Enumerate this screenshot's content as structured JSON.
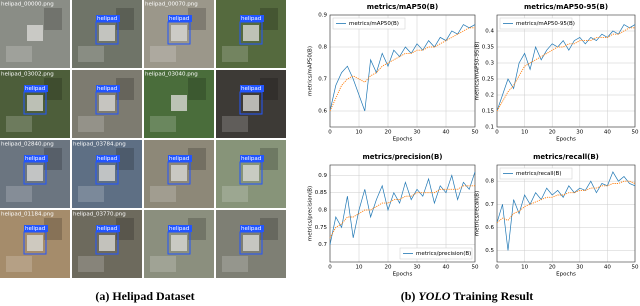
{
  "dataset": {
    "tiles": [
      {
        "file": "helipad_00000.png"
      },
      {
        "label": "helipad"
      },
      {
        "file": "helipad_00070.png",
        "label": "helipad"
      },
      {
        "label": "helipad"
      },
      {
        "file": "helipad_03002.png",
        "label": "helipad"
      },
      {
        "label": "helipad"
      },
      {
        "file": "helipad_03040.png"
      },
      {
        "label": "helipad"
      },
      {
        "file": "helipad_02840.png",
        "label": "helipad"
      },
      {
        "file": "helipad_03784.png",
        "label": "helipad"
      },
      {
        "label": "helipad"
      },
      {
        "label": "helipad"
      },
      {
        "file": "helipad_01184.png",
        "label": "helipad"
      },
      {
        "file": "helipad_03770.png",
        "label": "helipad"
      },
      {
        "label": "helipad"
      },
      {
        "label": "helipad"
      }
    ]
  },
  "caption_a": "(a) Helipad Dataset",
  "caption_b": {
    "label": "(b)",
    "italic": "YOLO",
    "rest": "Training Result"
  },
  "chart_data": [
    {
      "type": "line",
      "title": "metrics/mAP50(B)",
      "xlabel": "Epochs",
      "ylabel": "metrics/mAP50(B)",
      "legend": "upper left",
      "grid": true,
      "x": [
        0,
        2,
        4,
        6,
        8,
        10,
        12,
        14,
        16,
        18,
        20,
        22,
        24,
        26,
        28,
        30,
        32,
        34,
        36,
        38,
        40,
        42,
        44,
        46,
        48,
        50
      ],
      "xlim": [
        0,
        50
      ],
      "xticks": [
        0,
        10,
        20,
        30,
        40,
        50
      ],
      "ylim": [
        0.55,
        0.9
      ],
      "yticks": [
        0.6,
        0.7,
        0.8,
        0.9
      ],
      "series": [
        {
          "name": "metrics/mAP50(B)",
          "color": "#1f77b4",
          "style": "solid",
          "values": [
            0.6,
            0.68,
            0.72,
            0.74,
            0.7,
            0.65,
            0.6,
            0.76,
            0.72,
            0.78,
            0.74,
            0.79,
            0.77,
            0.8,
            0.78,
            0.81,
            0.79,
            0.82,
            0.8,
            0.83,
            0.82,
            0.85,
            0.84,
            0.87,
            0.86,
            0.87
          ]
        },
        {
          "color": "#ff7f0e",
          "style": "dotted",
          "values": [
            0.6,
            0.64,
            0.68,
            0.7,
            0.71,
            0.7,
            0.69,
            0.71,
            0.72,
            0.74,
            0.75,
            0.76,
            0.77,
            0.78,
            0.78,
            0.79,
            0.79,
            0.8,
            0.8,
            0.81,
            0.82,
            0.83,
            0.84,
            0.85,
            0.86,
            0.86
          ]
        }
      ]
    },
    {
      "type": "line",
      "title": "metrics/mAP50-95(B)",
      "xlabel": "Epochs",
      "ylabel": "metrics/mAP50-95(B)",
      "legend": "upper left",
      "grid": true,
      "x": [
        0,
        2,
        4,
        6,
        8,
        10,
        12,
        14,
        16,
        18,
        20,
        22,
        24,
        26,
        28,
        30,
        32,
        34,
        36,
        38,
        40,
        42,
        44,
        46,
        48,
        50
      ],
      "xlim": [
        0,
        50
      ],
      "xticks": [
        0,
        10,
        20,
        30,
        40,
        50
      ],
      "ylim": [
        0.1,
        0.45
      ],
      "yticks": [
        0.1,
        0.15,
        0.2,
        0.25,
        0.3,
        0.35,
        0.4
      ],
      "series": [
        {
          "name": "metrics/mAP50-95(B)",
          "color": "#1f77b4",
          "style": "solid",
          "values": [
            0.15,
            0.2,
            0.25,
            0.22,
            0.3,
            0.33,
            0.28,
            0.35,
            0.31,
            0.34,
            0.36,
            0.35,
            0.37,
            0.34,
            0.37,
            0.38,
            0.36,
            0.38,
            0.37,
            0.39,
            0.38,
            0.4,
            0.39,
            0.42,
            0.41,
            0.42
          ]
        },
        {
          "color": "#ff7f0e",
          "style": "dotted",
          "values": [
            0.15,
            0.18,
            0.21,
            0.23,
            0.26,
            0.29,
            0.3,
            0.31,
            0.32,
            0.33,
            0.34,
            0.35,
            0.35,
            0.36,
            0.36,
            0.37,
            0.37,
            0.37,
            0.38,
            0.38,
            0.38,
            0.39,
            0.39,
            0.4,
            0.41,
            0.41
          ]
        }
      ]
    },
    {
      "type": "line",
      "title": "metrics/precision(B)",
      "xlabel": "Epochs",
      "ylabel": "metrics/precision(B)",
      "legend": "lower right",
      "grid": true,
      "x": [
        0,
        2,
        4,
        6,
        8,
        10,
        12,
        14,
        16,
        18,
        20,
        22,
        24,
        26,
        28,
        30,
        32,
        34,
        36,
        38,
        40,
        42,
        44,
        46,
        48,
        50
      ],
      "xlim": [
        0,
        50
      ],
      "xticks": [
        0,
        10,
        20,
        30,
        40,
        50
      ],
      "ylim": [
        0.65,
        0.93
      ],
      "yticks": [
        0.7,
        0.75,
        0.8,
        0.85,
        0.9
      ],
      "series": [
        {
          "name": "metrics/precision(B)",
          "color": "#1f77b4",
          "style": "solid",
          "values": [
            0.7,
            0.78,
            0.75,
            0.84,
            0.72,
            0.8,
            0.86,
            0.78,
            0.83,
            0.87,
            0.8,
            0.85,
            0.82,
            0.88,
            0.83,
            0.86,
            0.84,
            0.89,
            0.82,
            0.87,
            0.85,
            0.9,
            0.83,
            0.88,
            0.86,
            0.91
          ]
        },
        {
          "color": "#ff7f0e",
          "style": "dotted",
          "values": [
            0.72,
            0.75,
            0.76,
            0.78,
            0.78,
            0.79,
            0.8,
            0.8,
            0.81,
            0.82,
            0.82,
            0.83,
            0.83,
            0.84,
            0.84,
            0.85,
            0.85,
            0.85,
            0.85,
            0.86,
            0.86,
            0.86,
            0.86,
            0.87,
            0.87,
            0.87
          ]
        }
      ]
    },
    {
      "type": "line",
      "title": "metrics/recall(B)",
      "xlabel": "Epochs",
      "ylabel": "metrics/recall(B)",
      "legend": "upper left",
      "grid": true,
      "x": [
        0,
        2,
        4,
        6,
        8,
        10,
        12,
        14,
        16,
        18,
        20,
        22,
        24,
        26,
        28,
        30,
        32,
        34,
        36,
        38,
        40,
        42,
        44,
        46,
        48,
        50
      ],
      "xlim": [
        0,
        50
      ],
      "xticks": [
        0,
        10,
        20,
        30,
        40,
        50
      ],
      "ylim": [
        0.45,
        0.87
      ],
      "yticks": [
        0.5,
        0.6,
        0.7,
        0.8
      ],
      "series": [
        {
          "name": "metrics/recall(B)",
          "color": "#1f77b4",
          "style": "solid",
          "values": [
            0.62,
            0.7,
            0.5,
            0.72,
            0.66,
            0.74,
            0.7,
            0.75,
            0.72,
            0.77,
            0.74,
            0.76,
            0.73,
            0.78,
            0.75,
            0.77,
            0.76,
            0.8,
            0.75,
            0.79,
            0.78,
            0.84,
            0.8,
            0.82,
            0.79,
            0.78
          ]
        },
        {
          "color": "#ff7f0e",
          "style": "dotted",
          "values": [
            0.62,
            0.64,
            0.63,
            0.66,
            0.67,
            0.69,
            0.7,
            0.71,
            0.72,
            0.73,
            0.73,
            0.74,
            0.74,
            0.75,
            0.75,
            0.76,
            0.76,
            0.77,
            0.77,
            0.78,
            0.78,
            0.79,
            0.79,
            0.8,
            0.8,
            0.79
          ]
        }
      ]
    }
  ]
}
